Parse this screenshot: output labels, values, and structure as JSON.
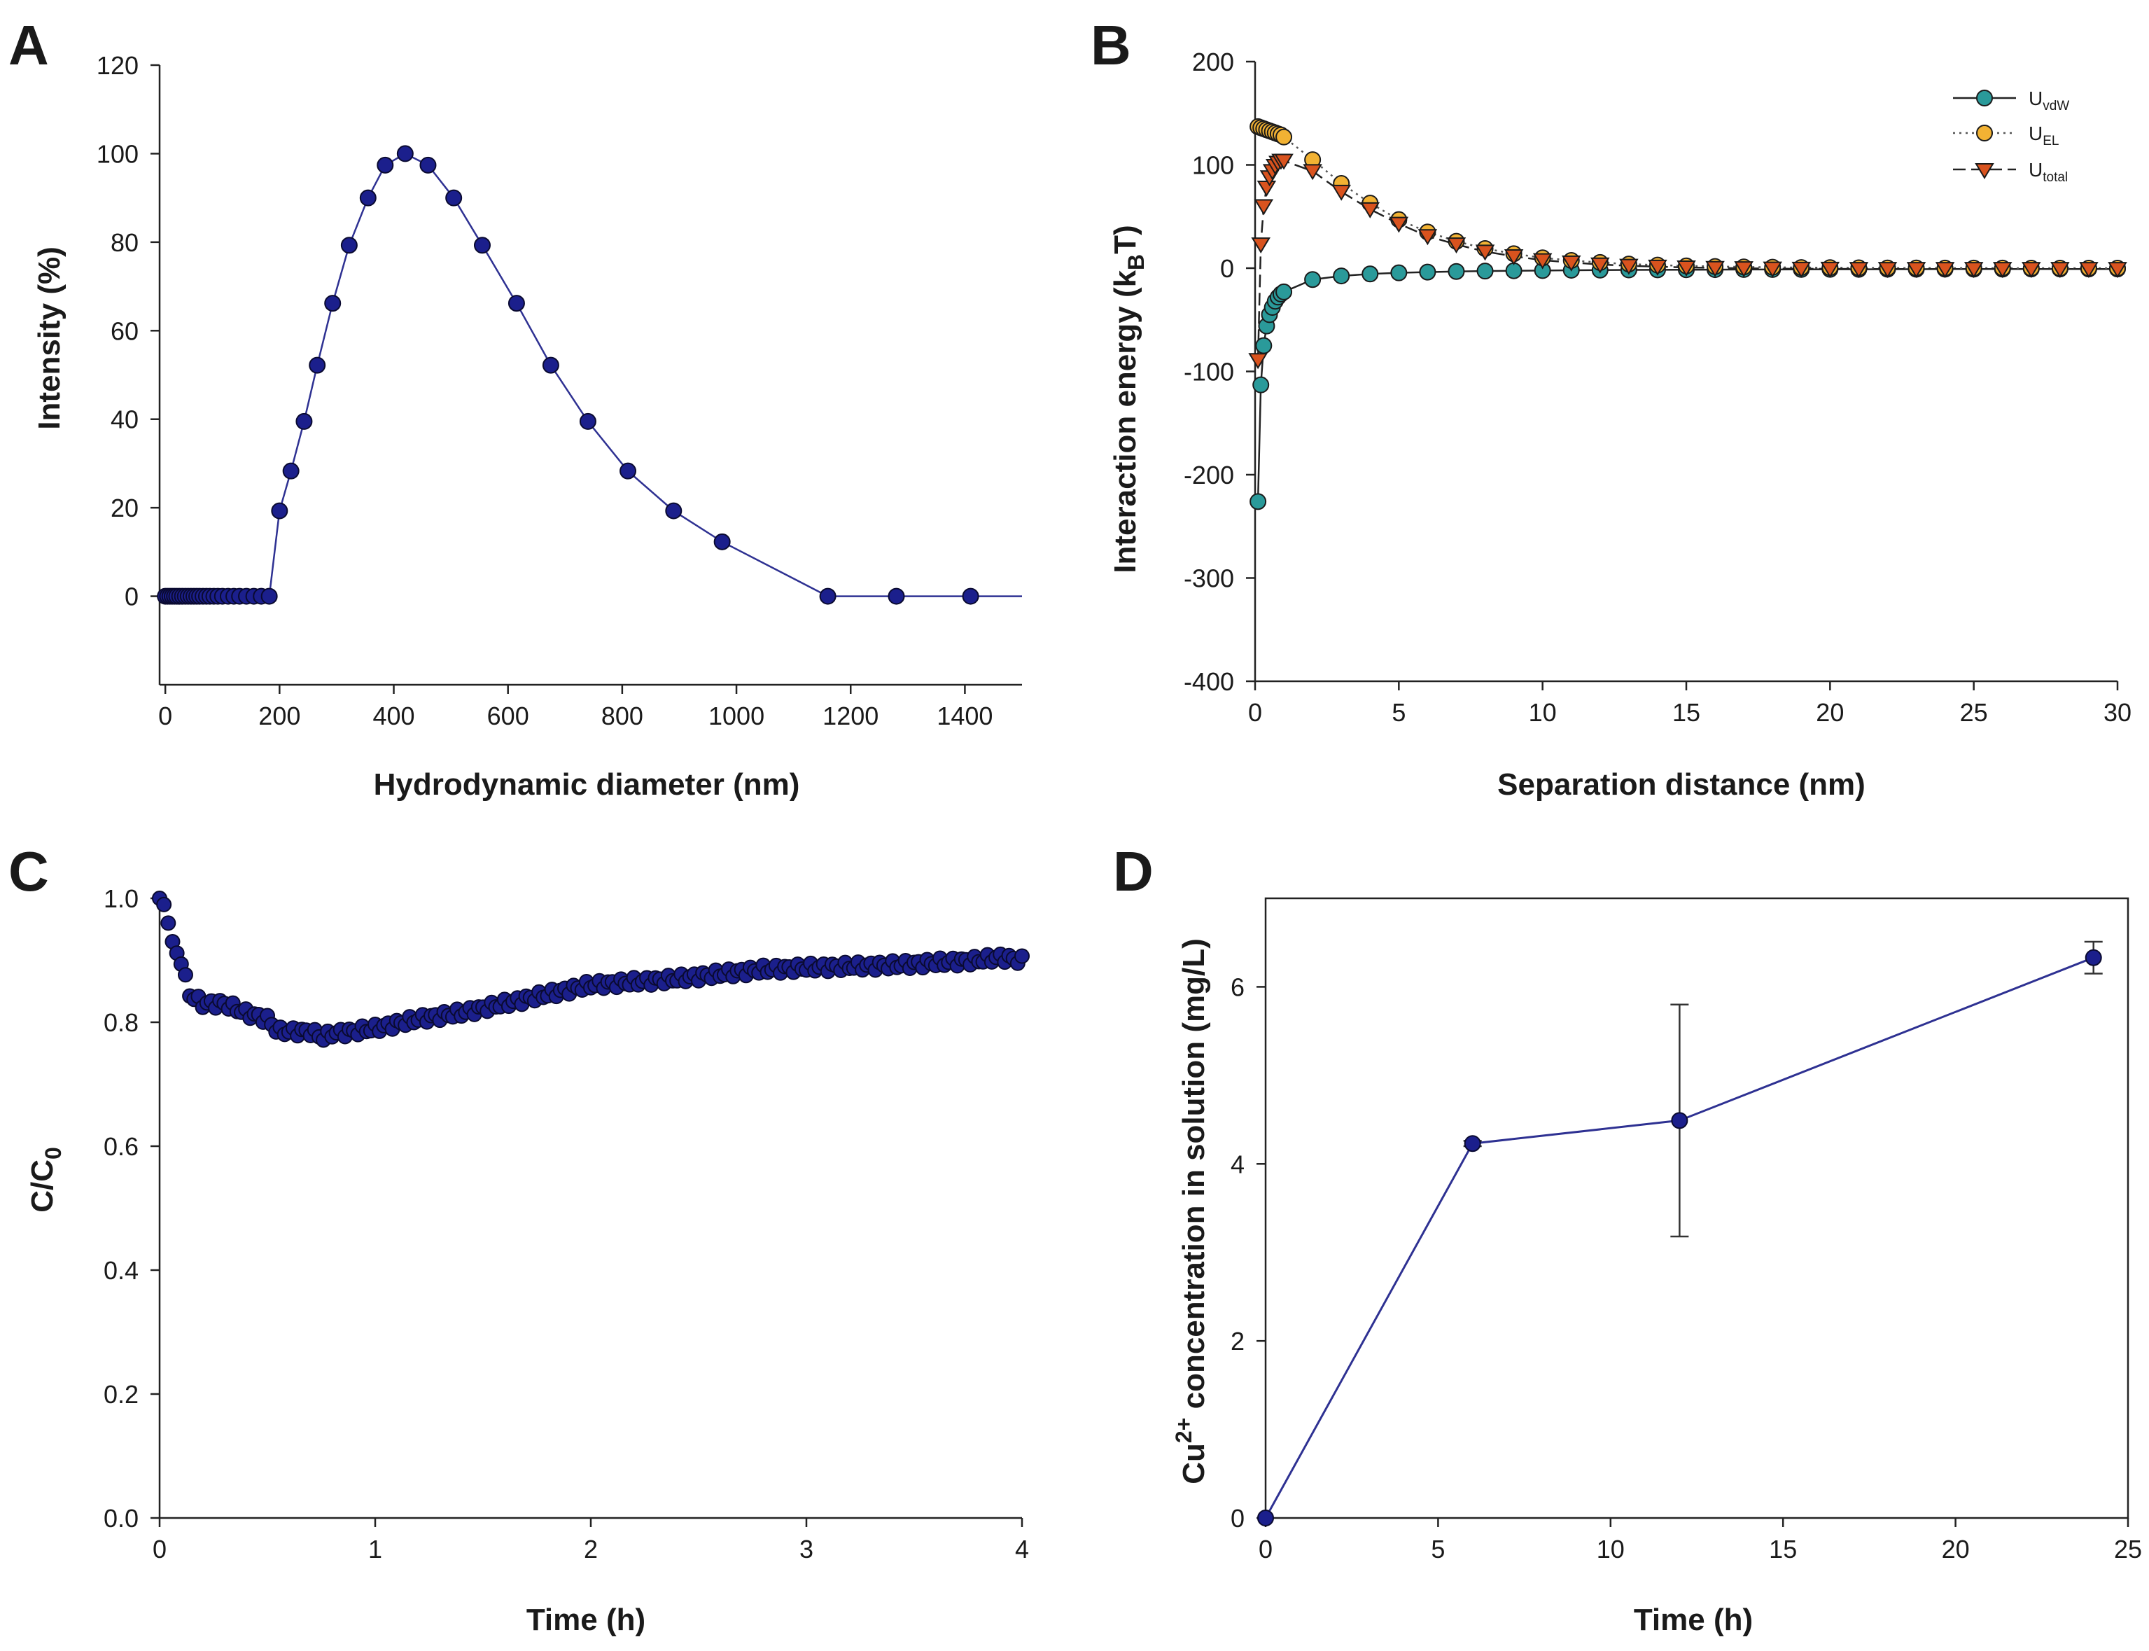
{
  "figure": {
    "background": "#ffffff",
    "axis_color": "#222222",
    "line_color": "#2e3192",
    "marker_fill": "#1b1f8c",
    "marker_edge": "#0a0a30"
  },
  "chart_data": [
    {
      "id": "A",
      "panel_label": "A",
      "type": "line",
      "title": "",
      "xlabel": "Hydrodynamic diameter (nm)",
      "ylabel": "Intensity (%)",
      "xlim": [
        -10,
        1500
      ],
      "ylim": [
        -20,
        120
      ],
      "xticks": [
        0,
        200,
        400,
        600,
        800,
        1000,
        1200,
        1400
      ],
      "yticks": [
        0,
        20,
        40,
        60,
        80,
        100,
        120
      ],
      "grid": false,
      "series": [
        {
          "name": "Intensity",
          "color": "#2e3192",
          "marker": "circle",
          "x": [
            0,
            4,
            8,
            12,
            16,
            20,
            25,
            30,
            35,
            40,
            45,
            50,
            55,
            60,
            66,
            72,
            78,
            85,
            92,
            100,
            110,
            120,
            130,
            142,
            155,
            168,
            182,
            200,
            220,
            243,
            266,
            293,
            322,
            355,
            385,
            420,
            460,
            505,
            555,
            615,
            675,
            740,
            810,
            890,
            975,
            1160,
            1280,
            1410,
            1500
          ],
          "y": [
            0,
            0,
            0,
            0,
            0,
            0,
            0,
            0,
            0,
            0,
            0,
            0,
            0,
            0,
            0,
            0,
            0,
            0,
            0,
            0,
            0,
            0,
            0,
            0,
            0,
            0,
            0,
            19.3,
            28.3,
            39.5,
            52.2,
            66.2,
            79.3,
            90,
            97.4,
            100,
            97.4,
            90,
            79.3,
            66.2,
            52.2,
            39.5,
            28.3,
            19.3,
            12.3,
            0,
            0,
            0,
            0
          ],
          "markers_drawn": 48
        }
      ]
    },
    {
      "id": "B",
      "panel_label": "B",
      "type": "line",
      "title": "",
      "xlabel": "Separation distance (nm)",
      "ylabel_parts": [
        "Interaction energy (k",
        "B",
        "T)"
      ],
      "xlim": [
        0,
        30
      ],
      "ylim": [
        -400,
        200
      ],
      "xticks": [
        0,
        5,
        10,
        15,
        20,
        25,
        30
      ],
      "yticks": [
        -400,
        -300,
        -200,
        -100,
        0,
        100,
        200
      ],
      "grid": false,
      "legend": {
        "position": "top-right",
        "entries": [
          {
            "main": "U",
            "sub": "vdW",
            "style": "solid",
            "marker": "circle",
            "fill": "#2a9a9a"
          },
          {
            "main": "U",
            "sub": "EL",
            "style": "dotted",
            "marker": "circle",
            "fill": "#f2b233"
          },
          {
            "main": "U",
            "sub": "total",
            "style": "dashed",
            "marker": "triangle-down",
            "fill": "#d9531e"
          }
        ]
      },
      "series": [
        {
          "name": "UvdW",
          "color": "#2a9a9a",
          "line_style": "solid",
          "marker": "circle",
          "x": [
            0.1,
            0.2,
            0.3,
            0.4,
            0.5,
            0.6,
            0.7,
            0.8,
            0.9,
            1,
            2,
            3,
            4,
            5,
            6,
            7,
            8,
            9,
            10,
            11,
            12,
            13,
            14,
            15,
            16,
            17,
            18,
            19,
            20,
            21,
            22,
            23,
            24,
            25,
            26,
            27,
            28,
            29,
            30
          ],
          "y": [
            -226,
            -113,
            -75,
            -56,
            -45,
            -38,
            -32,
            -28,
            -25,
            -23,
            -11,
            -7.5,
            -5.6,
            -4.5,
            -3.8,
            -3.2,
            -2.8,
            -2.5,
            -2.3,
            -2,
            -1.9,
            -1.7,
            -1.6,
            -1.5,
            -1.4,
            -1.3,
            -1.3,
            -1.2,
            -1.1,
            -1.1,
            -1,
            -1,
            -0.9,
            -0.9,
            -0.9,
            -0.8,
            -0.8,
            -0.8,
            -0.8
          ]
        },
        {
          "name": "UEL",
          "color": "#f2b233",
          "line_style": "dotted",
          "marker": "circle",
          "x": [
            0.1,
            0.2,
            0.3,
            0.4,
            0.5,
            0.6,
            0.7,
            0.8,
            0.9,
            1,
            2,
            3,
            4,
            5,
            6,
            7,
            8,
            9,
            10,
            11,
            12,
            13,
            14,
            15,
            16,
            17,
            18,
            19,
            20,
            21,
            22,
            23,
            24,
            25,
            26,
            27,
            28,
            29,
            30
          ],
          "y": [
            137,
            136,
            135,
            134,
            133,
            132,
            131,
            130,
            129,
            127,
            105,
            82,
            63,
            47,
            35,
            26,
            19,
            14,
            10,
            7.5,
            5.5,
            4,
            3,
            2.2,
            1.6,
            1.2,
            0.9,
            0.6,
            0.5,
            0.3,
            0.2,
            0.2,
            0.1,
            0.1,
            0.1,
            0,
            0,
            0,
            0
          ]
        },
        {
          "name": "Utotal",
          "color": "#d9531e",
          "line_style": "dashed",
          "marker": "triangle-down",
          "x": [
            0.1,
            0.2,
            0.3,
            0.4,
            0.5,
            0.6,
            0.7,
            0.8,
            0.9,
            1,
            2,
            3,
            4,
            5,
            6,
            7,
            8,
            9,
            10,
            11,
            12,
            13,
            14,
            15,
            16,
            17,
            18,
            19,
            20,
            21,
            22,
            23,
            24,
            25,
            26,
            27,
            28,
            29,
            30
          ],
          "y": [
            -89,
            23,
            60,
            78,
            88,
            94,
            99,
            102,
            104,
            104,
            94,
            74,
            57,
            43,
            31,
            23,
            16,
            11.5,
            7.7,
            5.5,
            3.6,
            2.3,
            1.4,
            0.7,
            0.2,
            -0.1,
            -0.4,
            -0.6,
            -0.6,
            -0.8,
            -0.8,
            -0.8,
            -0.8,
            -0.8,
            -0.8,
            -0.8,
            -0.8,
            -0.8,
            -0.8
          ]
        }
      ]
    },
    {
      "id": "C",
      "panel_label": "C",
      "type": "scatter",
      "title": "",
      "xlabel": "Time (h)",
      "ylabel_parts": [
        "C/C",
        "0"
      ],
      "xlim": [
        0,
        4
      ],
      "ylim": [
        0,
        1.0
      ],
      "xticks": [
        0,
        1,
        2,
        3,
        4
      ],
      "yticks": [
        0.0,
        0.2,
        0.4,
        0.6,
        0.8,
        1.0
      ],
      "ytick_labels": [
        "0.0",
        "0.2",
        "0.4",
        "0.6",
        "0.8",
        "1.0"
      ],
      "grid": false,
      "series": [
        {
          "name": "C/C0",
          "color": "#1b1f8c",
          "marker": "circle",
          "points": 200,
          "interval_h": 0.02,
          "keypoints_x": [
            0,
            0.02,
            0.04,
            0.06,
            0.08,
            0.1,
            0.12,
            0.14,
            0.2,
            0.3,
            0.4,
            0.5,
            0.55,
            0.6,
            0.7,
            0.76,
            0.8,
            0.9,
            1.0,
            1.2,
            1.4,
            1.6,
            1.8,
            2.0,
            2.2,
            2.4,
            2.6,
            2.8,
            3.0,
            3.2,
            3.4,
            3.6,
            3.8,
            3.9,
            4.0
          ],
          "keypoints_y": [
            1.0,
            0.99,
            0.96,
            0.93,
            0.91,
            0.9,
            0.87,
            0.845,
            0.83,
            0.83,
            0.815,
            0.805,
            0.785,
            0.785,
            0.785,
            0.775,
            0.782,
            0.785,
            0.79,
            0.805,
            0.815,
            0.83,
            0.845,
            0.86,
            0.865,
            0.87,
            0.878,
            0.885,
            0.888,
            0.89,
            0.892,
            0.896,
            0.9,
            0.905,
            0.9
          ]
        }
      ]
    },
    {
      "id": "D",
      "panel_label": "D",
      "type": "line",
      "title": "",
      "xlabel": "Time (h)",
      "ylabel_parts": [
        "Cu",
        "2+",
        " concentration in solution (mg/L)"
      ],
      "xlim": [
        0,
        25
      ],
      "ylim": [
        0,
        7
      ],
      "xticks": [
        0,
        5,
        10,
        15,
        20,
        25
      ],
      "yticks": [
        0,
        2,
        4,
        6
      ],
      "grid": false,
      "series": [
        {
          "name": "Cu2+",
          "color": "#2e3192",
          "marker": "circle",
          "x": [
            0,
            6,
            12,
            24
          ],
          "y": [
            0,
            4.23,
            4.49,
            6.33
          ],
          "error": [
            0,
            0.03,
            1.31,
            0.18
          ]
        }
      ]
    }
  ]
}
